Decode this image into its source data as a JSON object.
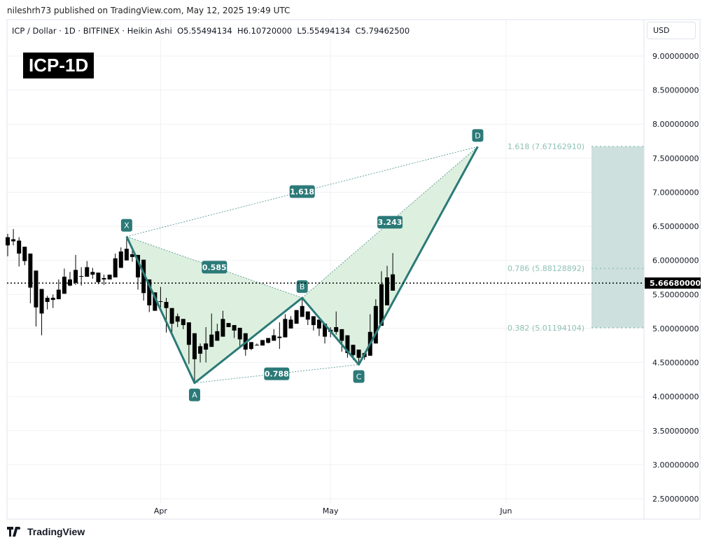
{
  "publish_line": "nileshrh73 published on TradingView.com, May 12, 2025 19:49 UTC",
  "legend": "ICP / Dollar · 1D · BITFINEX · Heikin Ashi  O5.55494134  H6.10720000  L5.55494134  C5.79462500",
  "badge": "ICP-1D",
  "currency_button": "USD",
  "footer_brand": "TradingView",
  "colors": {
    "pattern": "#2b7a78",
    "fill": "#d9eedb",
    "fib": "#8fc1b5",
    "fib_box": "#cde0de",
    "candle": "#000000"
  },
  "chart_data": {
    "type": "candlestick",
    "title": "ICP / Dollar · 1D · BITFINEX · Heikin Ashi",
    "first_bar_date": "2025-03-05",
    "ylim": [
      2.5,
      9.0
    ],
    "y_ticks": [
      "9.00000000",
      "8.50000000",
      "8.00000000",
      "7.50000000",
      "7.00000000",
      "6.50000000",
      "6.00000000",
      "5.50000000",
      "5.00000000",
      "4.50000000",
      "4.00000000",
      "3.50000000",
      "3.00000000",
      "2.50000000"
    ],
    "x_ticks": [
      {
        "label": "Apr",
        "bar": 27
      },
      {
        "label": "May",
        "bar": 57
      },
      {
        "label": "Jun",
        "bar": 88
      }
    ],
    "ohlc": [
      [
        6.34,
        6.39,
        6.06,
        6.22
      ],
      [
        6.31,
        6.46,
        6.22,
        6.28
      ],
      [
        6.29,
        6.34,
        5.91,
        6.1
      ],
      [
        6.2,
        6.2,
        5.93,
        5.99
      ],
      [
        6.1,
        6.1,
        5.37,
        5.6
      ],
      [
        5.85,
        5.85,
        5.03,
        5.31
      ],
      [
        5.58,
        5.58,
        4.9,
        5.22
      ],
      [
        5.45,
        5.48,
        5.28,
        5.39
      ],
      [
        5.45,
        5.5,
        5.3,
        5.42
      ],
      [
        5.57,
        5.72,
        5.43,
        5.43
      ],
      [
        5.76,
        5.88,
        5.51,
        5.51
      ],
      [
        5.72,
        5.83,
        5.62,
        5.63
      ],
      [
        5.86,
        6.08,
        5.64,
        5.67
      ],
      [
        5.77,
        5.9,
        5.63,
        5.76
      ],
      [
        5.9,
        5.99,
        5.76,
        5.76
      ],
      [
        5.83,
        5.89,
        5.73,
        5.79
      ],
      [
        5.82,
        5.82,
        5.65,
        5.68
      ],
      [
        5.74,
        5.79,
        5.64,
        5.72
      ],
      [
        5.79,
        5.79,
        5.72,
        5.72
      ],
      [
        6.03,
        6.1,
        5.75,
        5.75
      ],
      [
        6.13,
        6.19,
        5.89,
        5.89
      ],
      [
        6.17,
        6.33,
        6.0,
        6.0
      ],
      [
        6.09,
        6.15,
        5.98,
        6.05
      ],
      [
        6.08,
        6.08,
        5.57,
        5.75
      ],
      [
        6.01,
        6.01,
        5.41,
        5.52
      ],
      [
        5.72,
        5.72,
        5.24,
        5.34
      ],
      [
        5.53,
        5.53,
        5.26,
        5.26
      ],
      [
        5.4,
        5.61,
        5.31,
        5.39
      ],
      [
        5.39,
        5.45,
        4.94,
        5.3
      ],
      [
        5.3,
        5.3,
        4.95,
        5.07
      ],
      [
        5.18,
        5.22,
        5.02,
        5.1
      ],
      [
        5.14,
        5.14,
        4.99,
        5.05
      ],
      [
        5.09,
        5.09,
        4.48,
        4.76
      ],
      [
        4.93,
        4.93,
        4.2,
        4.55
      ],
      [
        4.74,
        4.78,
        4.5,
        4.63
      ],
      [
        4.78,
        5.02,
        4.5,
        4.69
      ],
      [
        4.91,
        5.22,
        4.73,
        4.73
      ],
      [
        4.96,
        5.07,
        4.82,
        4.82
      ],
      [
        5.14,
        5.26,
        4.88,
        4.88
      ],
      [
        5.08,
        5.08,
        5.02,
        5.02
      ],
      [
        5.05,
        5.05,
        4.86,
        4.97
      ],
      [
        5.01,
        5.01,
        4.72,
        4.84
      ],
      [
        4.93,
        4.93,
        4.6,
        4.69
      ],
      [
        4.8,
        4.8,
        4.68,
        4.7
      ],
      [
        4.76,
        4.78,
        4.75,
        4.75
      ],
      [
        4.83,
        4.83,
        4.75,
        4.75
      ],
      [
        4.86,
        4.86,
        4.78,
        4.79
      ],
      [
        4.9,
        4.99,
        4.82,
        4.82
      ],
      [
        4.88,
        5.09,
        4.7,
        4.86
      ],
      [
        5.14,
        5.21,
        4.87,
        4.87
      ],
      [
        5.13,
        5.18,
        5.0,
        5.0
      ],
      [
        5.27,
        5.27,
        5.07,
        5.07
      ],
      [
        5.33,
        5.43,
        5.17,
        5.17
      ],
      [
        5.25,
        5.25,
        5.05,
        5.13
      ],
      [
        5.18,
        5.18,
        4.97,
        5.05
      ],
      [
        5.13,
        5.13,
        4.89,
        5.0
      ],
      [
        5.07,
        5.07,
        4.78,
        4.88
      ],
      [
        4.98,
        5.02,
        4.87,
        4.95
      ],
      [
        5.02,
        5.25,
        4.91,
        4.95
      ],
      [
        4.99,
        4.99,
        4.66,
        4.82
      ],
      [
        4.9,
        4.9,
        4.57,
        4.64
      ],
      [
        4.76,
        4.76,
        4.54,
        4.61
      ],
      [
        4.69,
        4.69,
        4.47,
        4.57
      ],
      [
        4.64,
        4.64,
        4.54,
        4.58
      ],
      [
        4.95,
        5.21,
        4.6,
        4.6
      ],
      [
        5.33,
        5.43,
        4.78,
        4.78
      ],
      [
        5.65,
        5.84,
        5.04,
        5.04
      ],
      [
        5.75,
        5.92,
        5.34,
        5.34
      ],
      [
        5.55494134,
        6.1072,
        5.55494134,
        5.794625
      ]
    ],
    "last_price": {
      "value": 5.6668,
      "label": "5.66680000"
    },
    "harmonic_pattern": {
      "points": [
        {
          "name": "X",
          "bar": 21,
          "price": 6.35
        },
        {
          "name": "A",
          "bar": 33,
          "price": 4.2
        },
        {
          "name": "B",
          "bar": 52,
          "price": 5.45
        },
        {
          "name": "C",
          "bar": 62,
          "price": 4.47
        },
        {
          "name": "D",
          "bar": 83,
          "price": 7.67
        }
      ],
      "ratios": [
        {
          "from": "X",
          "to": "B",
          "label": "0.585"
        },
        {
          "from": "A",
          "to": "C",
          "label": "0.788"
        },
        {
          "from": "X",
          "to": "D",
          "label": "1.618"
        },
        {
          "from": "B",
          "to": "D",
          "label": "3.243"
        }
      ]
    },
    "fib_levels": [
      {
        "ratio": "1.618",
        "price": 7.6716291,
        "label": "1.618 (7.67162910)"
      },
      {
        "ratio": "0.786",
        "price": 5.88128892,
        "label": "0.786 (5.88128892)"
      },
      {
        "ratio": "0.382",
        "price": 5.01194104,
        "label": "0.382 (5.01194104)"
      }
    ]
  }
}
